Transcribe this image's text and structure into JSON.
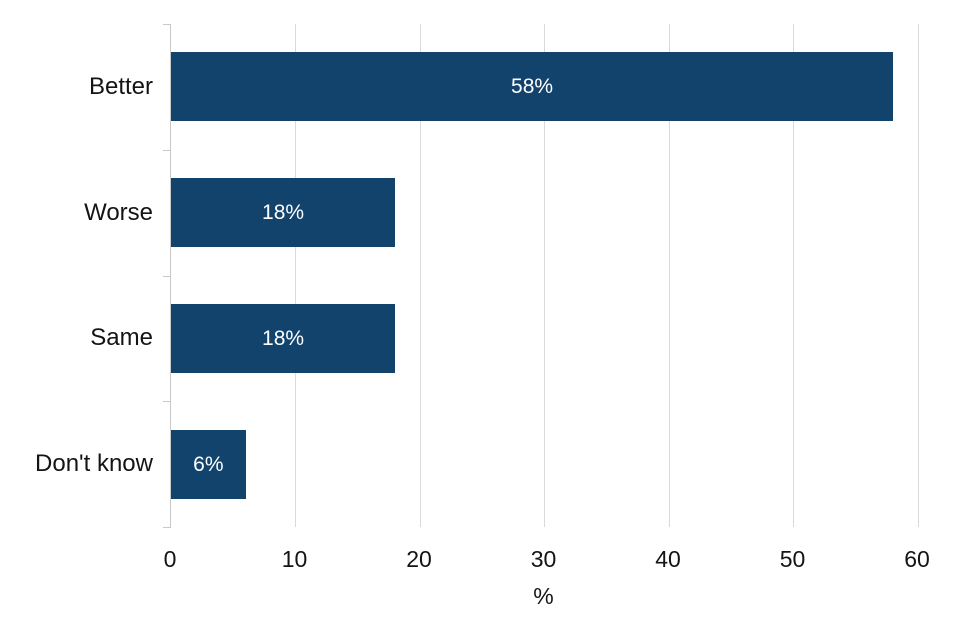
{
  "chart_data": {
    "type": "bar",
    "orientation": "horizontal",
    "title": "",
    "xlabel": "%",
    "ylabel": "",
    "categories": [
      "Better",
      "Worse",
      "Same",
      "Don't know"
    ],
    "values": [
      58,
      18,
      18,
      6
    ],
    "bar_labels": [
      "58%",
      "18%",
      "18%",
      "6%"
    ],
    "xlim": [
      0,
      60
    ],
    "x_ticks": [
      0,
      10,
      20,
      30,
      40,
      50,
      60
    ],
    "x_tick_labels": [
      "0",
      "10",
      "20",
      "30",
      "40",
      "50",
      "60"
    ],
    "grid": "vertical-gridlines-on",
    "legend": "none",
    "colors": {
      "bar": "#12436d",
      "bar_label_text": "#ffffff",
      "gridline": "#d9d9d9",
      "axis_line": "#c9c9c9",
      "text": "#141414",
      "background": "#ffffff"
    }
  }
}
